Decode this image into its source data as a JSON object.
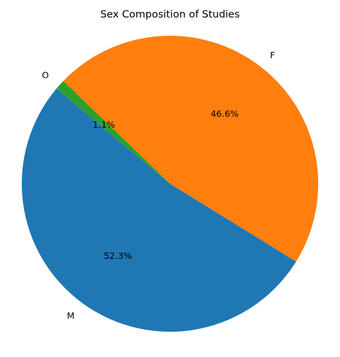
{
  "chart_data": {
    "type": "pie",
    "title": "Sex Composition of Studies",
    "slices": [
      {
        "label": "M",
        "value": 52.3,
        "pct_label": "52.3%",
        "color": "#1f77b4"
      },
      {
        "label": "F",
        "value": 46.6,
        "pct_label": "46.6%",
        "color": "#ff7f0e"
      },
      {
        "label": "O",
        "value": 1.1,
        "pct_label": "1.1%",
        "color": "#2ca02c"
      }
    ],
    "start_angle_deg": 140,
    "direction": "counterclockwise",
    "grid": false,
    "legend": "none"
  }
}
